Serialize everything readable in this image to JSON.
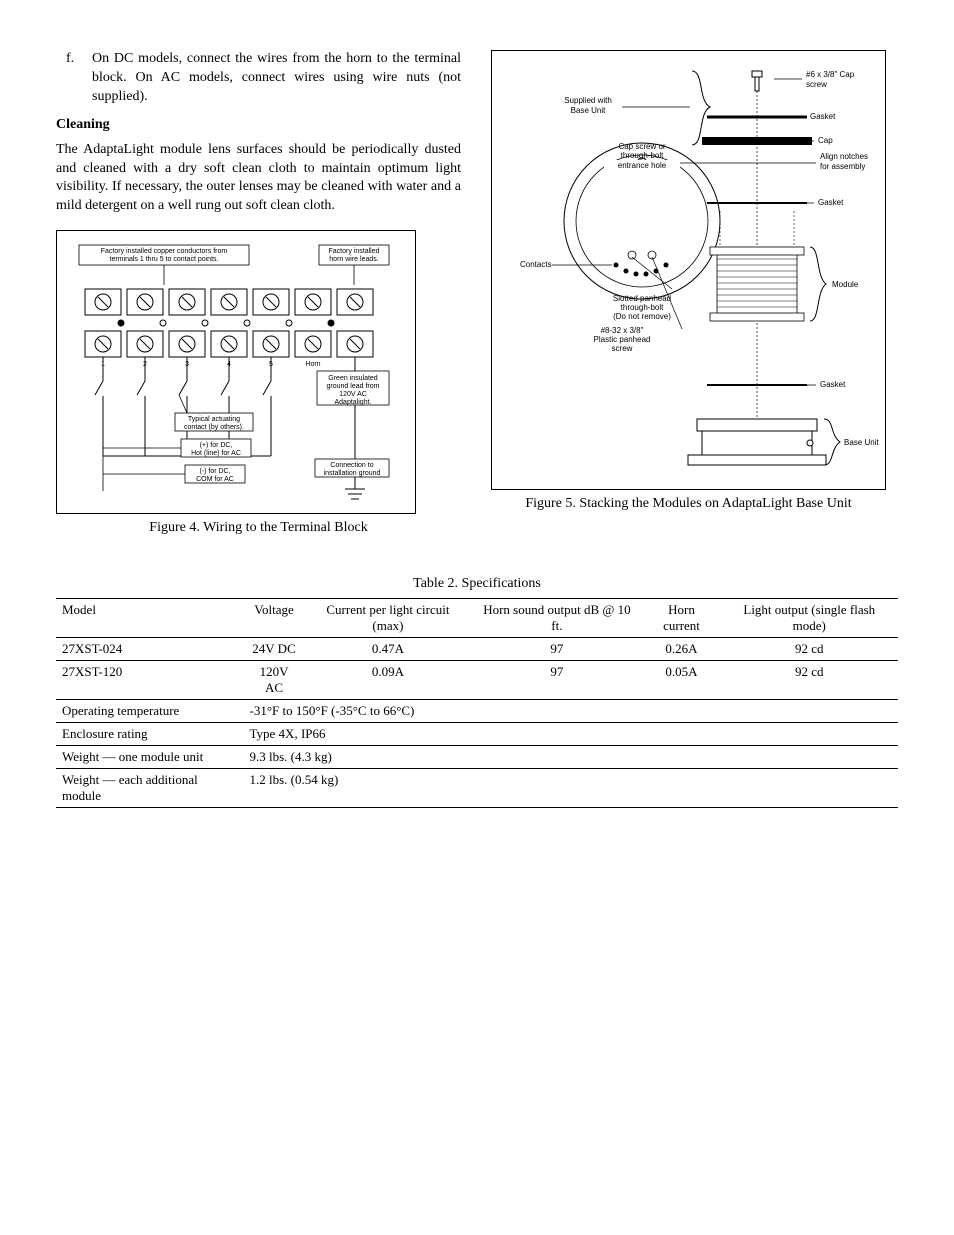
{
  "text": {
    "item_f_marker": "f.",
    "item_f_body": "On DC models, connect the wires from the horn to the terminal block.  On AC models, connect wires using wire nuts (not supplied).",
    "cleaning_heading": "Cleaning",
    "cleaning_para": "The AdaptaLight module lens surfaces should be periodically dusted and cleaned with a dry soft clean cloth to maintain optimum light visibility.  If necessary, the outer lenses may be cleaned with water and a mild detergent on a well rung out soft clean cloth.",
    "fig4_caption": "Figure 4.  Wiring to the Terminal Block",
    "fig5_caption": "Figure 5.  Stacking the Modules on AdaptaLight Base Unit",
    "table2_caption": "Table 2.  Specifications"
  },
  "fig4": {
    "label_factory1_l1": "Factory installed copper conductors from",
    "label_factory1_l2": "terminals 1 thru 5 to contact points.",
    "label_factory2_l1": "Factory installed",
    "label_factory2_l2": "horn wire leads.",
    "terminal_numbers": [
      "1",
      "2",
      "3",
      "4",
      "5",
      "Horn"
    ],
    "label_actuating_l1": "Typical actuating",
    "label_actuating_l2": "contact (by others).",
    "label_pos_l1": "(+) for DC,",
    "label_pos_l2": "Hot (line) for AC",
    "label_neg_l1": "(-) for DC,",
    "label_neg_l2": "COM for AC",
    "label_ground_l1": "Green insulated",
    "label_ground_l2": "ground lead from",
    "label_ground_l3": "120V AC",
    "label_ground_l4": "Adaptalight.",
    "label_conn_l1": "Connection to",
    "label_conn_l2": "installation ground",
    "font_size_small": 7,
    "stroke": "#000000",
    "bg": "#ffffff"
  },
  "fig5": {
    "label_supplied_l1": "Supplied with",
    "label_supplied_l2": "Base Unit",
    "label_capscrew_l1": "#6 x 3/8\" Cap",
    "label_capscrew_l2": "screw",
    "label_gasket": "Gasket",
    "label_cap": "Cap",
    "label_entrance_l1": "Cap screw or",
    "label_entrance_l2": "through-bolt",
    "label_entrance_l3": "entrance hole",
    "label_align_l1": "Align notches",
    "label_align_l2": "for assembly",
    "label_contacts": "Contacts",
    "label_slotted_l1": "Slotted panhead",
    "label_slotted_l2": "through-bolt",
    "label_slotted_l3": "(Do not remove)",
    "label_plastic_l1": "#8-32 x 3/8\"",
    "label_plastic_l2": "Plastic panhead",
    "label_plastic_l3": "screw",
    "label_module": "Module",
    "label_baseunit": "Base Unit",
    "font_size_small": 8,
    "stroke": "#000000"
  },
  "table2": {
    "columns": [
      "Model",
      "Voltage",
      "Current per light circuit (max)",
      "Horn sound output dB @ 10 ft.",
      "Horn current",
      "Light output (single flash mode)"
    ],
    "rows": [
      [
        "27XST-024",
        "24V DC",
        "0.47A",
        "97",
        "0.26A",
        "92 cd"
      ],
      [
        "27XST-120",
        "120V AC",
        "0.09A",
        "97",
        "0.05A",
        "92 cd"
      ],
      [
        "Operating temperature",
        "-31°F to 150°F (-35°C to 66°C)",
        "",
        "",
        "",
        ""
      ],
      [
        "Enclosure rating",
        "Type 4X, IP66",
        "",
        "",
        "",
        ""
      ],
      [
        "Weight — one module unit",
        "9.3 lbs. (4.3 kg)",
        "",
        "",
        "",
        ""
      ],
      [
        "Weight — each additional module",
        "1.2 lbs. (0.54 kg)",
        "",
        "",
        "",
        ""
      ]
    ],
    "row_spans": [
      [
        1,
        1,
        1,
        1,
        1,
        1
      ],
      [
        1,
        1,
        1,
        1,
        1,
        1
      ],
      [
        1,
        5,
        0,
        0,
        0,
        0
      ],
      [
        1,
        5,
        0,
        0,
        0,
        0
      ],
      [
        1,
        5,
        0,
        0,
        0,
        0
      ],
      [
        1,
        5,
        0,
        0,
        0,
        0
      ]
    ],
    "border_color": "#000000",
    "font_size": 13
  }
}
